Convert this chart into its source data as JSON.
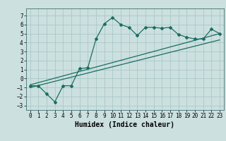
{
  "xlabel": "Humidex (Indice chaleur)",
  "ylabel": "",
  "xlim": [
    -0.5,
    23.5
  ],
  "ylim": [
    -3.5,
    7.8
  ],
  "xticks": [
    0,
    1,
    2,
    3,
    4,
    5,
    6,
    7,
    8,
    9,
    10,
    11,
    12,
    13,
    14,
    15,
    16,
    17,
    18,
    19,
    20,
    21,
    22,
    23
  ],
  "yticks": [
    -3,
    -2,
    -1,
    0,
    1,
    2,
    3,
    4,
    5,
    6,
    7
  ],
  "bg_color": "#cce0e0",
  "grid_color": "#aac8c8",
  "line_color": "#1a6e60",
  "curve1_x": [
    0,
    1,
    2,
    3,
    4,
    5,
    6,
    7,
    8,
    9,
    10,
    11,
    12,
    13,
    14,
    15,
    16,
    17,
    18,
    19,
    20,
    21,
    22,
    23
  ],
  "curve1_y": [
    -0.8,
    -0.8,
    -1.7,
    -2.6,
    -0.8,
    -0.8,
    1.1,
    1.2,
    4.4,
    6.1,
    6.8,
    6.0,
    5.7,
    4.8,
    5.7,
    5.7,
    5.6,
    5.7,
    4.9,
    4.6,
    4.4,
    4.4,
    5.5,
    5.0
  ],
  "line2_x": [
    0,
    23
  ],
  "line2_y": [
    -1.0,
    4.3
  ],
  "line3_x": [
    0,
    23
  ],
  "line3_y": [
    -0.7,
    5.0
  ],
  "font_size": 6.5,
  "tick_font_size": 5.5,
  "xlabel_fontsize": 7
}
